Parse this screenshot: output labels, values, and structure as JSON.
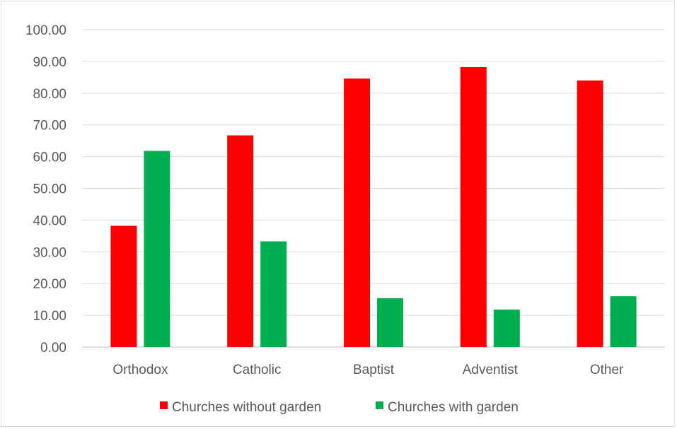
{
  "chart_data": {
    "type": "bar",
    "categories": [
      "Orthodox",
      "Catholic",
      "Baptist",
      "Adventist",
      "Other"
    ],
    "series": [
      {
        "name": "Churches without garden",
        "color": "#ff0000",
        "values": [
          38.2,
          66.7,
          84.6,
          88.2,
          84.0
        ]
      },
      {
        "name": "Churches with garden",
        "color": "#00b050",
        "values": [
          61.8,
          33.3,
          15.4,
          11.8,
          16.0
        ]
      }
    ],
    "ylim": [
      0,
      100
    ],
    "yticks": [
      "0.00",
      "10.00",
      "20.00",
      "30.00",
      "40.00",
      "50.00",
      "60.00",
      "70.00",
      "80.00",
      "90.00",
      "100.00"
    ],
    "grid": true,
    "legend_position": "bottom",
    "title": "",
    "xlabel": "",
    "ylabel": ""
  }
}
